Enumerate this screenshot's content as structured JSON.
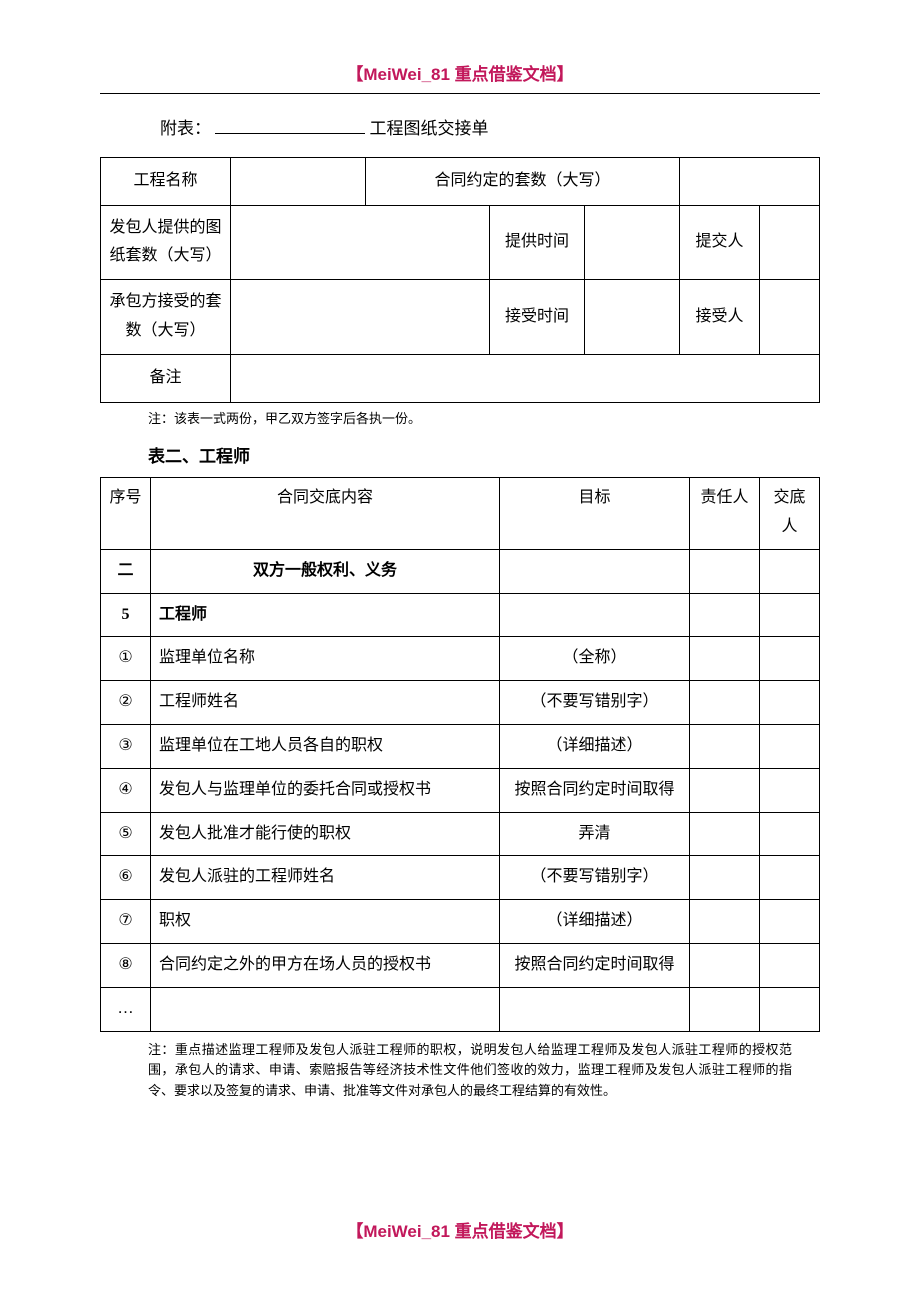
{
  "brand": "【MeiWei_81 重点借鉴文档】",
  "attachment_label": "附表：",
  "attachment_title": "工程图纸交接单",
  "table1": {
    "r0c0": "工程名称",
    "r0c2": "合同约定的套数（大写）",
    "r1c0": "发包人提供的图纸套数（大写）",
    "r1c2": "提供时间",
    "r1c4": "提交人",
    "r2c0": "承包方接受的套数（大写）",
    "r2c2": "接受时间",
    "r2c4": "接受人",
    "r3c0": "备注"
  },
  "note1": "注：该表一式两份，甲乙双方签字后各执一份。",
  "section_title": "表二、工程师",
  "table2": {
    "headers": {
      "seq": "序号",
      "content": "合同交底内容",
      "target": "目标",
      "resp": "责任人",
      "disc": "交底人"
    },
    "section_num": "二",
    "section_label": "双方一般权利、义务",
    "rows": [
      {
        "seq": "5",
        "content": "工程师",
        "target": "",
        "bold": true
      },
      {
        "seq": "①",
        "content": "监理单位名称",
        "target": "（全称）"
      },
      {
        "seq": "②",
        "content": "工程师姓名",
        "target": "（不要写错别字）"
      },
      {
        "seq": "③",
        "content": "监理单位在工地人员各自的职权",
        "target": "（详细描述）"
      },
      {
        "seq": "④",
        "content": "发包人与监理单位的委托合同或授权书",
        "target": "按照合同约定时间取得"
      },
      {
        "seq": "⑤",
        "content": "发包人批准才能行使的职权",
        "target": "弄清"
      },
      {
        "seq": "⑥",
        "content": "发包人派驻的工程师姓名",
        "target": "（不要写错别字）"
      },
      {
        "seq": "⑦",
        "content": "职权",
        "target": "（详细描述）"
      },
      {
        "seq": "⑧",
        "content": "合同约定之外的甲方在场人员的授权书",
        "target": "按照合同约定时间取得"
      },
      {
        "seq": "…",
        "content": "",
        "target": ""
      }
    ]
  },
  "note2": "注：重点描述监理工程师及发包人派驻工程师的职权，说明发包人给监理工程师及发包人派驻工程师的授权范围，承包人的请求、申请、索赔报告等经济技术性文件他们签收的效力，监理工程师及发包人派驻工程师的指令、要求以及签复的请求、申请、批准等文件对承包人的最终工程结算的有效性。"
}
